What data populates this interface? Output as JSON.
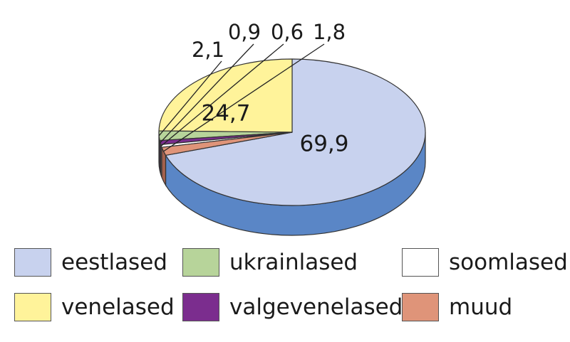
{
  "chart_data": {
    "type": "pie",
    "title": "",
    "categories": [
      "eestlased",
      "venelased",
      "ukrainlased",
      "valgevenelased",
      "soomlased",
      "muud"
    ],
    "values": [
      69.9,
      24.7,
      2.1,
      0.9,
      0.6,
      1.8
    ],
    "value_labels": [
      "69,9",
      "24,7",
      "2,1",
      "0,9",
      "0,6",
      "1,8"
    ],
    "colors": [
      "#c8d2ee",
      "#fff39a",
      "#b7d49a",
      "#7b2d8e",
      "#ffffff",
      "#df9479"
    ],
    "side_colors": [
      "#5a86c6",
      "#a3a15d",
      "#7f9a66",
      "#521d60",
      "#cccccc",
      "#a3614d"
    ],
    "legend_placement": "bottom",
    "style": "3d"
  }
}
